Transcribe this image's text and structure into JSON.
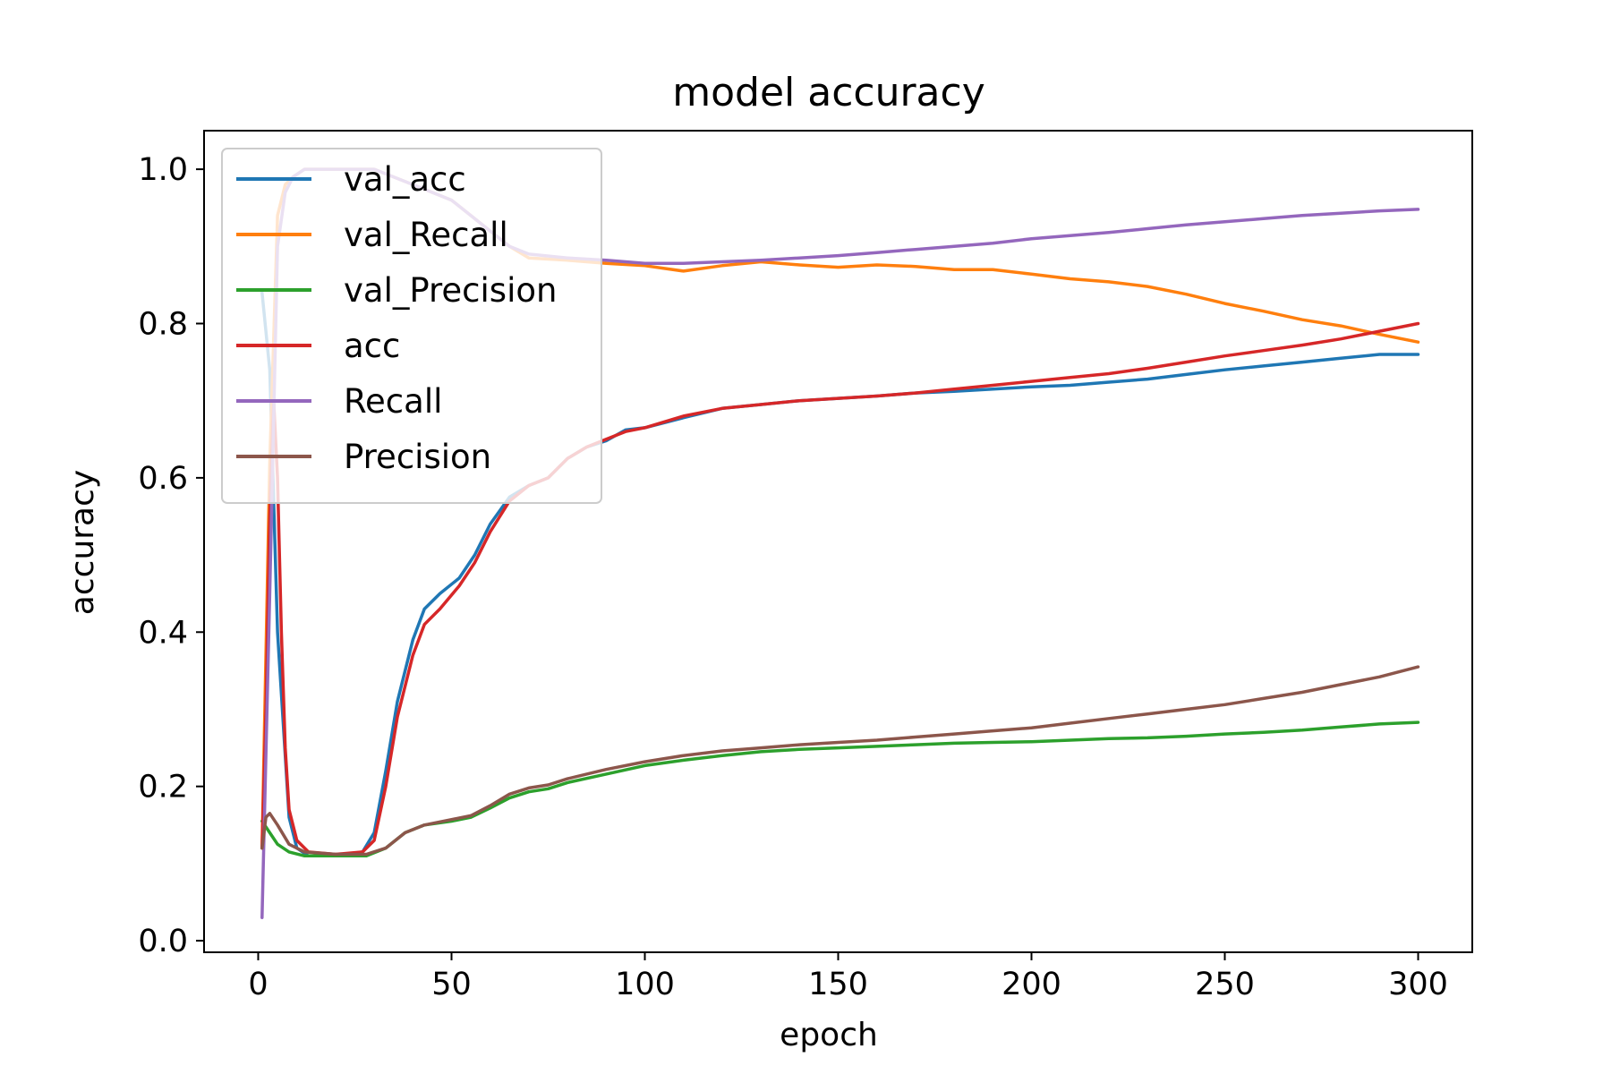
{
  "chart_data": {
    "type": "line",
    "title": "model accuracy",
    "xlabel": "epoch",
    "ylabel": "accuracy",
    "xlim": [
      -14,
      314
    ],
    "ylim": [
      -0.015,
      1.05
    ],
    "xticks": [
      0,
      50,
      100,
      150,
      200,
      250,
      300
    ],
    "xtick_labels": [
      "0",
      "50",
      "100",
      "150",
      "200",
      "250",
      "300"
    ],
    "yticks": [
      0.0,
      0.2,
      0.4,
      0.6,
      0.8,
      1.0
    ],
    "ytick_labels": [
      "0.0",
      "0.2",
      "0.4",
      "0.6",
      "0.8",
      "1.0"
    ],
    "legend_position": "upper-left",
    "grid": false,
    "series": [
      {
        "name": "val_acc",
        "color": "#1f77b4",
        "x": [
          1,
          3,
          5,
          8,
          10,
          13,
          20,
          27,
          30,
          33,
          36,
          40,
          43,
          47,
          52,
          56,
          60,
          65,
          70,
          75,
          80,
          85,
          90,
          95,
          100,
          110,
          120,
          130,
          140,
          150,
          160,
          170,
          180,
          190,
          200,
          210,
          220,
          230,
          240,
          250,
          260,
          270,
          280,
          290,
          300
        ],
        "values": [
          0.84,
          0.74,
          0.4,
          0.16,
          0.12,
          0.11,
          0.11,
          0.115,
          0.14,
          0.22,
          0.31,
          0.39,
          0.43,
          0.45,
          0.47,
          0.5,
          0.54,
          0.575,
          0.59,
          0.6,
          0.625,
          0.64,
          0.648,
          0.662,
          0.665,
          0.678,
          0.69,
          0.695,
          0.7,
          0.703,
          0.706,
          0.71,
          0.712,
          0.715,
          0.718,
          0.72,
          0.724,
          0.728,
          0.734,
          0.74,
          0.745,
          0.75,
          0.755,
          0.76,
          0.76
        ]
      },
      {
        "name": "val_Recall",
        "color": "#ff7f0e",
        "x": [
          1,
          3,
          5,
          7,
          9,
          12,
          20,
          30,
          40,
          50,
          60,
          65,
          70,
          80,
          90,
          100,
          110,
          120,
          130,
          140,
          150,
          160,
          170,
          180,
          190,
          200,
          210,
          220,
          230,
          240,
          250,
          260,
          270,
          280,
          290,
          300
        ],
        "values": [
          0.12,
          0.62,
          0.94,
          0.98,
          0.99,
          1.0,
          1.0,
          1.0,
          0.98,
          0.96,
          0.92,
          0.9,
          0.885,
          0.882,
          0.878,
          0.875,
          0.868,
          0.875,
          0.88,
          0.876,
          0.873,
          0.876,
          0.874,
          0.87,
          0.87,
          0.864,
          0.858,
          0.854,
          0.848,
          0.838,
          0.826,
          0.816,
          0.805,
          0.797,
          0.786,
          0.776
        ]
      },
      {
        "name": "val_Precision",
        "color": "#2ca02c",
        "x": [
          1,
          3,
          5,
          8,
          12,
          20,
          28,
          33,
          38,
          43,
          50,
          55,
          60,
          65,
          70,
          75,
          80,
          90,
          100,
          110,
          120,
          130,
          140,
          150,
          160,
          170,
          180,
          190,
          200,
          210,
          220,
          230,
          240,
          250,
          260,
          270,
          280,
          290,
          300
        ],
        "values": [
          0.155,
          0.14,
          0.125,
          0.115,
          0.11,
          0.11,
          0.11,
          0.12,
          0.14,
          0.15,
          0.155,
          0.16,
          0.172,
          0.185,
          0.193,
          0.197,
          0.205,
          0.216,
          0.227,
          0.234,
          0.24,
          0.245,
          0.248,
          0.25,
          0.252,
          0.254,
          0.256,
          0.257,
          0.258,
          0.26,
          0.262,
          0.263,
          0.265,
          0.268,
          0.27,
          0.273,
          0.277,
          0.281,
          0.283
        ]
      },
      {
        "name": "acc",
        "color": "#d62728",
        "x": [
          1,
          2,
          3,
          4,
          5,
          6,
          7,
          8,
          10,
          13,
          20,
          27,
          30,
          33,
          36,
          40,
          43,
          47,
          52,
          56,
          60,
          65,
          70,
          75,
          80,
          85,
          90,
          95,
          100,
          110,
          120,
          130,
          140,
          150,
          160,
          170,
          180,
          190,
          200,
          210,
          220,
          230,
          240,
          250,
          260,
          270,
          280,
          290,
          300
        ],
        "values": [
          0.12,
          0.3,
          0.55,
          0.7,
          0.6,
          0.4,
          0.25,
          0.17,
          0.13,
          0.115,
          0.112,
          0.115,
          0.13,
          0.2,
          0.29,
          0.37,
          0.41,
          0.43,
          0.46,
          0.49,
          0.53,
          0.57,
          0.59,
          0.6,
          0.625,
          0.64,
          0.65,
          0.66,
          0.665,
          0.68,
          0.69,
          0.695,
          0.7,
          0.703,
          0.706,
          0.71,
          0.715,
          0.72,
          0.725,
          0.73,
          0.735,
          0.742,
          0.75,
          0.758,
          0.765,
          0.772,
          0.78,
          0.79,
          0.8
        ]
      },
      {
        "name": "Recall",
        "color": "#9467bd",
        "x": [
          1,
          3,
          5,
          7,
          9,
          12,
          20,
          30,
          40,
          50,
          60,
          65,
          70,
          80,
          90,
          100,
          110,
          120,
          130,
          140,
          150,
          160,
          170,
          180,
          190,
          200,
          210,
          220,
          230,
          240,
          250,
          260,
          270,
          280,
          290,
          300
        ],
        "values": [
          0.03,
          0.45,
          0.9,
          0.97,
          0.99,
          1.0,
          1.0,
          1.0,
          0.98,
          0.96,
          0.92,
          0.9,
          0.89,
          0.885,
          0.882,
          0.878,
          0.878,
          0.88,
          0.882,
          0.885,
          0.888,
          0.892,
          0.896,
          0.9,
          0.904,
          0.91,
          0.914,
          0.918,
          0.923,
          0.928,
          0.932,
          0.936,
          0.94,
          0.943,
          0.946,
          0.948
        ]
      },
      {
        "name": "Precision",
        "color": "#8c564b",
        "x": [
          1,
          2,
          3,
          5,
          8,
          12,
          20,
          28,
          33,
          38,
          43,
          50,
          55,
          60,
          65,
          70,
          75,
          80,
          90,
          100,
          110,
          120,
          130,
          140,
          150,
          160,
          170,
          180,
          190,
          200,
          210,
          220,
          230,
          240,
          250,
          260,
          270,
          280,
          290,
          300
        ],
        "values": [
          0.12,
          0.16,
          0.165,
          0.15,
          0.125,
          0.115,
          0.112,
          0.112,
          0.12,
          0.14,
          0.15,
          0.157,
          0.162,
          0.175,
          0.19,
          0.198,
          0.202,
          0.21,
          0.222,
          0.232,
          0.24,
          0.246,
          0.25,
          0.254,
          0.257,
          0.26,
          0.264,
          0.268,
          0.272,
          0.276,
          0.282,
          0.288,
          0.294,
          0.3,
          0.306,
          0.314,
          0.322,
          0.332,
          0.342,
          0.355
        ]
      }
    ]
  }
}
